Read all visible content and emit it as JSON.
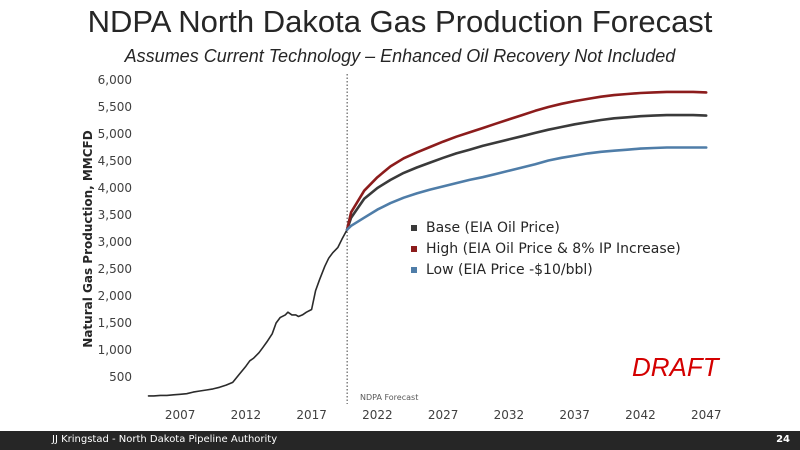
{
  "slide": {
    "title": "NDPA North Dakota Gas Production Forecast",
    "subtitle": "Assumes Current Technology – Enhanced Oil Recovery Not Included"
  },
  "footer": {
    "text": "JJ Kringstad - North Dakota Pipeline Authority",
    "page": "24"
  },
  "colors": {
    "base": "#3a3a3a",
    "high": "#8c1c1c",
    "low": "#4f7da8",
    "history": "#2b2b2b",
    "draft": "#d40000"
  },
  "chart_data": {
    "type": "line",
    "ylabel": "Natural Gas Production, MMCFD",
    "ylim": [
      0,
      6000
    ],
    "yticks": [
      500,
      1000,
      1500,
      2000,
      2500,
      3000,
      3500,
      4000,
      4500,
      5000,
      5500,
      6000
    ],
    "xlim": [
      2003.8,
      2048.2
    ],
    "xticks": [
      2007,
      2012,
      2017,
      2022,
      2027,
      2032,
      2037,
      2042,
      2047
    ],
    "forecast_marker": {
      "x": 2019.7,
      "label": "NDPA Forecast"
    },
    "annotation": "DRAFT",
    "legend_position": "center-right",
    "series": [
      {
        "name": "History",
        "legend": false,
        "x": [
          2004.6,
          2005,
          2005.5,
          2006,
          2006.5,
          2007,
          2007.5,
          2008,
          2008.5,
          2009,
          2009.5,
          2010,
          2010.5,
          2011,
          2011.5,
          2012,
          2012.3,
          2012.6,
          2013,
          2013.3,
          2013.6,
          2014,
          2014.3,
          2014.6,
          2015,
          2015.2,
          2015.5,
          2015.8,
          2016,
          2016.3,
          2016.6,
          2017,
          2017.3,
          2017.6,
          2018,
          2018.3,
          2018.6,
          2019,
          2019.3,
          2019.7
        ],
        "y": [
          150,
          150,
          160,
          160,
          170,
          180,
          190,
          220,
          240,
          260,
          280,
          310,
          350,
          400,
          550,
          700,
          800,
          850,
          950,
          1050,
          1150,
          1300,
          1500,
          1600,
          1650,
          1700,
          1650,
          1650,
          1620,
          1650,
          1700,
          1750,
          2100,
          2300,
          2550,
          2700,
          2800,
          2900,
          3050,
          3230
        ]
      },
      {
        "name": "Base (EIA Oil Price)",
        "x": [
          2019.7,
          2020,
          2021,
          2022,
          2023,
          2024,
          2025,
          2026,
          2027,
          2028,
          2029,
          2030,
          2031,
          2032,
          2033,
          2034,
          2035,
          2036,
          2037,
          2038,
          2039,
          2040,
          2041,
          2042,
          2043,
          2044,
          2045,
          2046,
          2047
        ],
        "y": [
          3230,
          3450,
          3800,
          4000,
          4150,
          4280,
          4380,
          4470,
          4560,
          4640,
          4710,
          4780,
          4840,
          4900,
          4960,
          5020,
          5080,
          5130,
          5180,
          5220,
          5260,
          5290,
          5310,
          5330,
          5340,
          5350,
          5350,
          5350,
          5340
        ]
      },
      {
        "name": "High (EIA Oil Price & 8% IP Increase)",
        "x": [
          2019.7,
          2020,
          2021,
          2022,
          2023,
          2024,
          2025,
          2026,
          2027,
          2028,
          2029,
          2030,
          2031,
          2032,
          2033,
          2034,
          2035,
          2036,
          2037,
          2038,
          2039,
          2040,
          2041,
          2042,
          2043,
          2044,
          2045,
          2046,
          2047
        ],
        "y": [
          3230,
          3550,
          3950,
          4200,
          4400,
          4550,
          4660,
          4760,
          4860,
          4950,
          5030,
          5110,
          5190,
          5270,
          5350,
          5430,
          5500,
          5560,
          5610,
          5650,
          5690,
          5720,
          5740,
          5760,
          5770,
          5780,
          5780,
          5780,
          5770
        ]
      },
      {
        "name": "Low (EIA Price -$10/bbl)",
        "x": [
          2019.7,
          2020,
          2021,
          2022,
          2023,
          2024,
          2025,
          2026,
          2027,
          2028,
          2029,
          2030,
          2031,
          2032,
          2033,
          2034,
          2035,
          2036,
          2037,
          2038,
          2039,
          2040,
          2041,
          2042,
          2043,
          2044,
          2045,
          2046,
          2047
        ],
        "y": [
          3230,
          3300,
          3450,
          3600,
          3720,
          3820,
          3900,
          3970,
          4030,
          4090,
          4150,
          4200,
          4260,
          4320,
          4380,
          4440,
          4510,
          4560,
          4600,
          4640,
          4670,
          4690,
          4710,
          4730,
          4740,
          4750,
          4750,
          4750,
          4750
        ]
      }
    ]
  }
}
